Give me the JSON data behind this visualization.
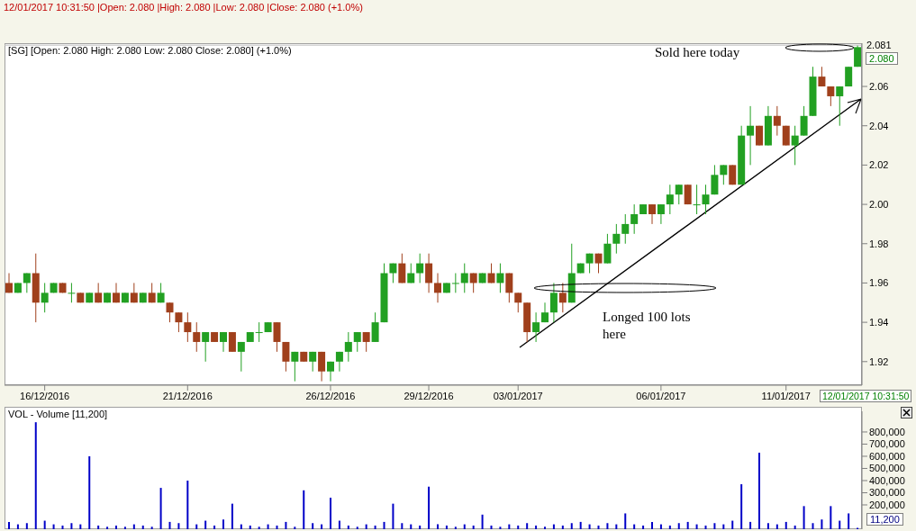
{
  "chart_data": [
    {
      "type": "candlestick",
      "title": "12/01/2017 10:31:50 |Open: 2.080 |High: 2.080 |Low: 2.080 |Close: 2.080 (+1.0%)",
      "subtitle": "[SG] [Open: 2.080  High: 2.080  Low: 2.080  Close: 2.080] (+1.0%)",
      "categories": [
        null,
        null,
        null,
        null,
        "16/12/2016",
        null,
        null,
        null,
        null,
        null,
        null,
        null,
        null,
        null,
        null,
        null,
        null,
        null,
        null,
        null,
        "21/12/2016",
        null,
        null,
        null,
        null,
        null,
        null,
        null,
        null,
        null,
        null,
        null,
        null,
        null,
        null,
        null,
        "26/12/2016",
        null,
        null,
        null,
        null,
        null,
        null,
        null,
        null,
        null,
        null,
        "29/12/2016",
        null,
        null,
        null,
        null,
        null,
        null,
        null,
        null,
        null,
        "03/01/2017",
        null,
        null,
        null,
        null,
        null,
        null,
        null,
        null,
        null,
        null,
        null,
        null,
        null,
        null,
        null,
        "06/01/2017",
        null,
        null,
        null,
        null,
        null,
        null,
        null,
        null,
        null,
        null,
        null,
        null,
        null,
        "11/01/2017",
        null,
        null,
        null,
        null,
        null,
        null,
        null,
        null
      ],
      "ohlc": [
        [
          1.96,
          1.965,
          1.955,
          1.955
        ],
        [
          1.955,
          1.96,
          1.955,
          1.96
        ],
        [
          1.96,
          1.965,
          1.955,
          1.965
        ],
        [
          1.965,
          1.975,
          1.94,
          1.95
        ],
        [
          1.95,
          1.96,
          1.945,
          1.955
        ],
        [
          1.955,
          1.96,
          1.955,
          1.96
        ],
        [
          1.96,
          1.96,
          1.955,
          1.955
        ],
        [
          1.955,
          1.96,
          1.95,
          1.955
        ],
        [
          1.955,
          1.955,
          1.95,
          1.95
        ],
        [
          1.95,
          1.955,
          1.95,
          1.955
        ],
        [
          1.955,
          1.96,
          1.95,
          1.95
        ],
        [
          1.95,
          1.955,
          1.95,
          1.955
        ],
        [
          1.955,
          1.96,
          1.95,
          1.95
        ],
        [
          1.95,
          1.955,
          1.95,
          1.955
        ],
        [
          1.955,
          1.96,
          1.95,
          1.95
        ],
        [
          1.95,
          1.955,
          1.95,
          1.955
        ],
        [
          1.955,
          1.96,
          1.95,
          1.95
        ],
        [
          1.95,
          1.96,
          1.95,
          1.955
        ],
        [
          1.95,
          1.95,
          1.94,
          1.945
        ],
        [
          1.945,
          1.945,
          1.935,
          1.94
        ],
        [
          1.94,
          1.945,
          1.93,
          1.935
        ],
        [
          1.935,
          1.94,
          1.925,
          1.93
        ],
        [
          1.93,
          1.935,
          1.92,
          1.935
        ],
        [
          1.935,
          1.935,
          1.93,
          1.93
        ],
        [
          1.93,
          1.935,
          1.925,
          1.935
        ],
        [
          1.935,
          1.935,
          1.925,
          1.925
        ],
        [
          1.925,
          1.93,
          1.915,
          1.93
        ],
        [
          1.93,
          1.935,
          1.93,
          1.935
        ],
        [
          1.935,
          1.94,
          1.93,
          1.935
        ],
        [
          1.935,
          1.94,
          1.935,
          1.94
        ],
        [
          1.94,
          1.94,
          1.925,
          1.93
        ],
        [
          1.93,
          1.93,
          1.915,
          1.92
        ],
        [
          1.92,
          1.925,
          1.91,
          1.925
        ],
        [
          1.925,
          1.925,
          1.92,
          1.92
        ],
        [
          1.92,
          1.925,
          1.915,
          1.925
        ],
        [
          1.925,
          1.925,
          1.91,
          1.915
        ],
        [
          1.915,
          1.92,
          1.91,
          1.92
        ],
        [
          1.92,
          1.925,
          1.915,
          1.925
        ],
        [
          1.925,
          1.935,
          1.92,
          1.93
        ],
        [
          1.93,
          1.935,
          1.925,
          1.935
        ],
        [
          1.935,
          1.935,
          1.925,
          1.93
        ],
        [
          1.93,
          1.945,
          1.93,
          1.94
        ],
        [
          1.94,
          1.97,
          1.94,
          1.965
        ],
        [
          1.965,
          1.97,
          1.96,
          1.97
        ],
        [
          1.97,
          1.975,
          1.96,
          1.96
        ],
        [
          1.96,
          1.97,
          1.96,
          1.965
        ],
        [
          1.965,
          1.975,
          1.96,
          1.97
        ],
        [
          1.97,
          1.975,
          1.955,
          1.96
        ],
        [
          1.96,
          1.965,
          1.95,
          1.955
        ],
        [
          1.955,
          1.96,
          1.955,
          1.96
        ],
        [
          1.96,
          1.965,
          1.955,
          1.96
        ],
        [
          1.96,
          1.97,
          1.955,
          1.965
        ],
        [
          1.965,
          1.965,
          1.955,
          1.96
        ],
        [
          1.96,
          1.965,
          1.96,
          1.965
        ],
        [
          1.965,
          1.97,
          1.96,
          1.96
        ],
        [
          1.96,
          1.97,
          1.955,
          1.965
        ],
        [
          1.965,
          1.965,
          1.95,
          1.955
        ],
        [
          1.955,
          1.955,
          1.945,
          1.95
        ],
        [
          1.95,
          1.95,
          1.93,
          1.935
        ],
        [
          1.935,
          1.945,
          1.93,
          1.94
        ],
        [
          1.94,
          1.95,
          1.94,
          1.945
        ],
        [
          1.945,
          1.96,
          1.94,
          1.955
        ],
        [
          1.955,
          1.96,
          1.945,
          1.95
        ],
        [
          1.95,
          1.98,
          1.95,
          1.965
        ],
        [
          1.965,
          1.97,
          1.965,
          1.97
        ],
        [
          1.97,
          1.975,
          1.965,
          1.975
        ],
        [
          1.975,
          1.975,
          1.965,
          1.97
        ],
        [
          1.97,
          1.985,
          1.97,
          1.98
        ],
        [
          1.98,
          1.99,
          1.975,
          1.985
        ],
        [
          1.985,
          1.995,
          1.98,
          1.99
        ],
        [
          1.99,
          2.0,
          1.985,
          1.995
        ],
        [
          1.995,
          2.0,
          1.995,
          2.0
        ],
        [
          2.0,
          2.0,
          1.99,
          1.995
        ],
        [
          1.995,
          2.0,
          1.99,
          2.0
        ],
        [
          2.0,
          2.01,
          1.995,
          2.005
        ],
        [
          2.005,
          2.01,
          2.0,
          2.01
        ],
        [
          2.01,
          2.01,
          2.0,
          2.0
        ],
        [
          2.0,
          2.01,
          1.995,
          2.0
        ],
        [
          2.0,
          2.01,
          1.995,
          2.005
        ],
        [
          2.005,
          2.02,
          2.005,
          2.015
        ],
        [
          2.015,
          2.02,
          2.01,
          2.02
        ],
        [
          2.02,
          2.02,
          2.01,
          2.01
        ],
        [
          2.01,
          2.04,
          2.01,
          2.035
        ],
        [
          2.035,
          2.05,
          2.02,
          2.04
        ],
        [
          2.04,
          2.04,
          2.03,
          2.03
        ],
        [
          2.03,
          2.05,
          2.03,
          2.045
        ],
        [
          2.045,
          2.05,
          2.035,
          2.04
        ],
        [
          2.04,
          2.04,
          2.03,
          2.03
        ],
        [
          2.03,
          2.04,
          2.02,
          2.035
        ],
        [
          2.035,
          2.05,
          2.035,
          2.045
        ],
        [
          2.045,
          2.07,
          2.045,
          2.065
        ],
        [
          2.065,
          2.07,
          2.06,
          2.06
        ],
        [
          2.06,
          2.06,
          2.05,
          2.055
        ],
        [
          2.055,
          2.06,
          2.04,
          2.06
        ],
        [
          2.06,
          2.07,
          2.06,
          2.07
        ],
        [
          2.07,
          2.081,
          2.07,
          2.08
        ]
      ],
      "colors": [
        "#a0401c",
        "#22a022",
        "#22a022",
        "#a0401c",
        "#22a022",
        "#22a022",
        "#a0401c",
        "#22a022",
        "#a0401c",
        "#22a022",
        "#a0401c",
        "#22a022",
        "#a0401c",
        "#22a022",
        "#a0401c",
        "#22a022",
        "#a0401c",
        "#22a022",
        "#a0401c",
        "#a0401c",
        "#a0401c",
        "#a0401c",
        "#22a022",
        "#a0401c",
        "#22a022",
        "#a0401c",
        "#22a022",
        "#22a022",
        "#22a022",
        "#22a022",
        "#a0401c",
        "#a0401c",
        "#22a022",
        "#a0401c",
        "#22a022",
        "#a0401c",
        "#22a022",
        "#22a022",
        "#22a022",
        "#22a022",
        "#a0401c",
        "#22a022",
        "#22a022",
        "#22a022",
        "#a0401c",
        "#22a022",
        "#22a022",
        "#a0401c",
        "#a0401c",
        "#22a022",
        "#22a022",
        "#22a022",
        "#a0401c",
        "#22a022",
        "#a0401c",
        "#22a022",
        "#a0401c",
        "#a0401c",
        "#a0401c",
        "#22a022",
        "#22a022",
        "#22a022",
        "#a0401c",
        "#22a022",
        "#22a022",
        "#22a022",
        "#a0401c",
        "#22a022",
        "#22a022",
        "#22a022",
        "#22a022",
        "#22a022",
        "#a0401c",
        "#22a022",
        "#22a022",
        "#22a022",
        "#a0401c",
        "#22a022",
        "#22a022",
        "#22a022",
        "#22a022",
        "#a0401c",
        "#22a022",
        "#22a022",
        "#a0401c",
        "#22a022",
        "#a0401c",
        "#a0401c",
        "#22a022",
        "#22a022",
        "#22a022",
        "#a0401c",
        "#a0401c",
        "#22a022",
        "#22a022",
        "#22a022"
      ],
      "ylim": [
        1.908,
        2.082
      ],
      "yticks": [
        {
          "value": 1.92,
          "label": "1.92"
        },
        {
          "value": 1.94,
          "label": "1.94"
        },
        {
          "value": 1.96,
          "label": "1.96"
        },
        {
          "value": 1.98,
          "label": "1.98"
        },
        {
          "value": 2.0,
          "label": "2.00"
        },
        {
          "value": 2.02,
          "label": "2.02"
        },
        {
          "value": 2.04,
          "label": "2.04"
        },
        {
          "value": 2.06,
          "label": "2.06"
        }
      ],
      "grid": false,
      "ref_lines": [
        {
          "axis": "y",
          "value": 2.081,
          "label": "2.081",
          "color": "#c0c0c0"
        }
      ],
      "annotations": [
        "Sold here today",
        "Longed 100 lots here",
        "2.080",
        "12/01/2017 10:31:50"
      ]
    },
    {
      "type": "bar",
      "title": "VOL - Volume [11,200]",
      "categories": [
        null,
        null,
        null,
        null,
        null,
        null,
        null,
        null,
        null,
        null,
        null,
        null,
        null,
        null,
        null,
        null,
        null,
        null,
        null,
        null,
        null,
        null,
        null,
        null,
        null,
        null,
        null,
        null,
        null,
        null,
        null,
        null,
        null,
        null,
        null,
        null,
        null,
        null,
        null,
        null,
        null,
        null,
        null,
        null,
        null,
        null,
        null,
        null,
        null,
        null,
        null,
        null,
        null,
        null,
        null,
        null,
        null,
        null,
        null,
        null,
        null,
        null,
        null,
        null,
        null,
        null,
        null,
        null,
        null,
        null,
        null,
        null,
        null,
        null,
        null,
        null,
        null,
        null,
        null,
        null,
        null,
        null,
        null,
        null,
        null,
        null,
        null,
        null,
        null,
        null,
        null,
        null,
        null,
        null,
        null,
        null
      ],
      "values": [
        60000,
        40000,
        50000,
        880000,
        70000,
        40000,
        30000,
        50000,
        40000,
        600000,
        30000,
        20000,
        30000,
        20000,
        40000,
        30000,
        20000,
        340000,
        60000,
        50000,
        400000,
        40000,
        70000,
        30000,
        80000,
        210000,
        40000,
        30000,
        20000,
        40000,
        30000,
        60000,
        20000,
        320000,
        50000,
        40000,
        260000,
        70000,
        30000,
        20000,
        40000,
        30000,
        60000,
        210000,
        50000,
        40000,
        30000,
        350000,
        40000,
        30000,
        20000,
        40000,
        30000,
        120000,
        30000,
        20000,
        40000,
        30000,
        50000,
        30000,
        20000,
        40000,
        30000,
        50000,
        60000,
        40000,
        30000,
        50000,
        40000,
        130000,
        40000,
        30000,
        60000,
        40000,
        30000,
        50000,
        60000,
        40000,
        30000,
        50000,
        40000,
        70000,
        370000,
        60000,
        630000,
        50000,
        40000,
        60000,
        30000,
        190000,
        50000,
        80000,
        190000,
        70000,
        130000,
        11200
      ],
      "color": "#0000c8",
      "ylim": [
        0,
        970000
      ],
      "yticks": [
        {
          "value": 200000,
          "label": "200,000"
        },
        {
          "value": 300000,
          "label": "300,000"
        },
        {
          "value": 400000,
          "label": "400,000"
        },
        {
          "value": 500000,
          "label": "500,000"
        },
        {
          "value": 600000,
          "label": "600,000"
        },
        {
          "value": 700000,
          "label": "700,000"
        },
        {
          "value": 800000,
          "label": "800,000"
        }
      ],
      "tick_labels": "y",
      "grid": false,
      "annotations": [
        "11,200"
      ]
    }
  ]
}
